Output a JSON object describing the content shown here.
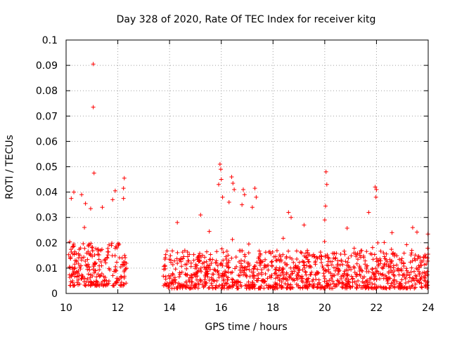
{
  "chart_data": {
    "type": "scatter",
    "title": "Day 328 of 2020, Rate Of TEC Index for receiver kitg",
    "xlabel": "GPS time / hours",
    "ylabel": "ROTI / TECUs",
    "xlim": [
      10,
      24
    ],
    "ylim": [
      0,
      0.1
    ],
    "x_ticks": [
      "10",
      "12",
      "14",
      "16",
      "18",
      "20",
      "22",
      "24"
    ],
    "y_ticks": [
      "0",
      "0.01",
      "0.02",
      "0.03",
      "0.04",
      "0.05",
      "0.06",
      "0.07",
      "0.08",
      "0.09",
      "0.1"
    ],
    "grid": true,
    "marker": "+",
    "color": "#ff0000",
    "segments": [
      {
        "x_start": 10.1,
        "x_end": 12.35,
        "base": 0.003,
        "typical_max": 0.02
      },
      {
        "x_start": 13.75,
        "x_end": 24.0,
        "base": 0.002,
        "typical_max": 0.017
      }
    ],
    "notable_points": [
      {
        "x": 11.05,
        "y": 0.0905
      },
      {
        "x": 11.05,
        "y": 0.0735
      },
      {
        "x": 11.08,
        "y": 0.0475
      },
      {
        "x": 12.25,
        "y": 0.0455
      },
      {
        "x": 12.22,
        "y": 0.0415
      },
      {
        "x": 12.22,
        "y": 0.0375
      },
      {
        "x": 10.2,
        "y": 0.0375
      },
      {
        "x": 10.3,
        "y": 0.04
      },
      {
        "x": 10.6,
        "y": 0.039
      },
      {
        "x": 10.75,
        "y": 0.0355
      },
      {
        "x": 11.9,
        "y": 0.0405
      },
      {
        "x": 11.8,
        "y": 0.037
      },
      {
        "x": 11.4,
        "y": 0.034
      },
      {
        "x": 10.95,
        "y": 0.0335
      },
      {
        "x": 15.95,
        "y": 0.051
      },
      {
        "x": 15.98,
        "y": 0.049
      },
      {
        "x": 16.0,
        "y": 0.045
      },
      {
        "x": 15.9,
        "y": 0.043
      },
      {
        "x": 16.05,
        "y": 0.038
      },
      {
        "x": 16.4,
        "y": 0.046
      },
      {
        "x": 16.45,
        "y": 0.0435
      },
      {
        "x": 16.5,
        "y": 0.041
      },
      {
        "x": 16.3,
        "y": 0.036
      },
      {
        "x": 16.85,
        "y": 0.041
      },
      {
        "x": 16.9,
        "y": 0.039
      },
      {
        "x": 16.8,
        "y": 0.035
      },
      {
        "x": 17.3,
        "y": 0.0415
      },
      {
        "x": 17.35,
        "y": 0.038
      },
      {
        "x": 17.2,
        "y": 0.034
      },
      {
        "x": 20.05,
        "y": 0.048
      },
      {
        "x": 20.08,
        "y": 0.043
      },
      {
        "x": 20.03,
        "y": 0.0345
      },
      {
        "x": 20.0,
        "y": 0.029
      },
      {
        "x": 21.95,
        "y": 0.042
      },
      {
        "x": 22.0,
        "y": 0.041
      },
      {
        "x": 21.98,
        "y": 0.038
      },
      {
        "x": 18.6,
        "y": 0.032
      },
      {
        "x": 18.7,
        "y": 0.03
      },
      {
        "x": 15.2,
        "y": 0.031
      },
      {
        "x": 14.3,
        "y": 0.028
      },
      {
        "x": 21.7,
        "y": 0.032
      },
      {
        "x": 23.4,
        "y": 0.026
      },
      {
        "x": 19.2,
        "y": 0.027
      },
      {
        "x": 22.6,
        "y": 0.024
      }
    ]
  }
}
